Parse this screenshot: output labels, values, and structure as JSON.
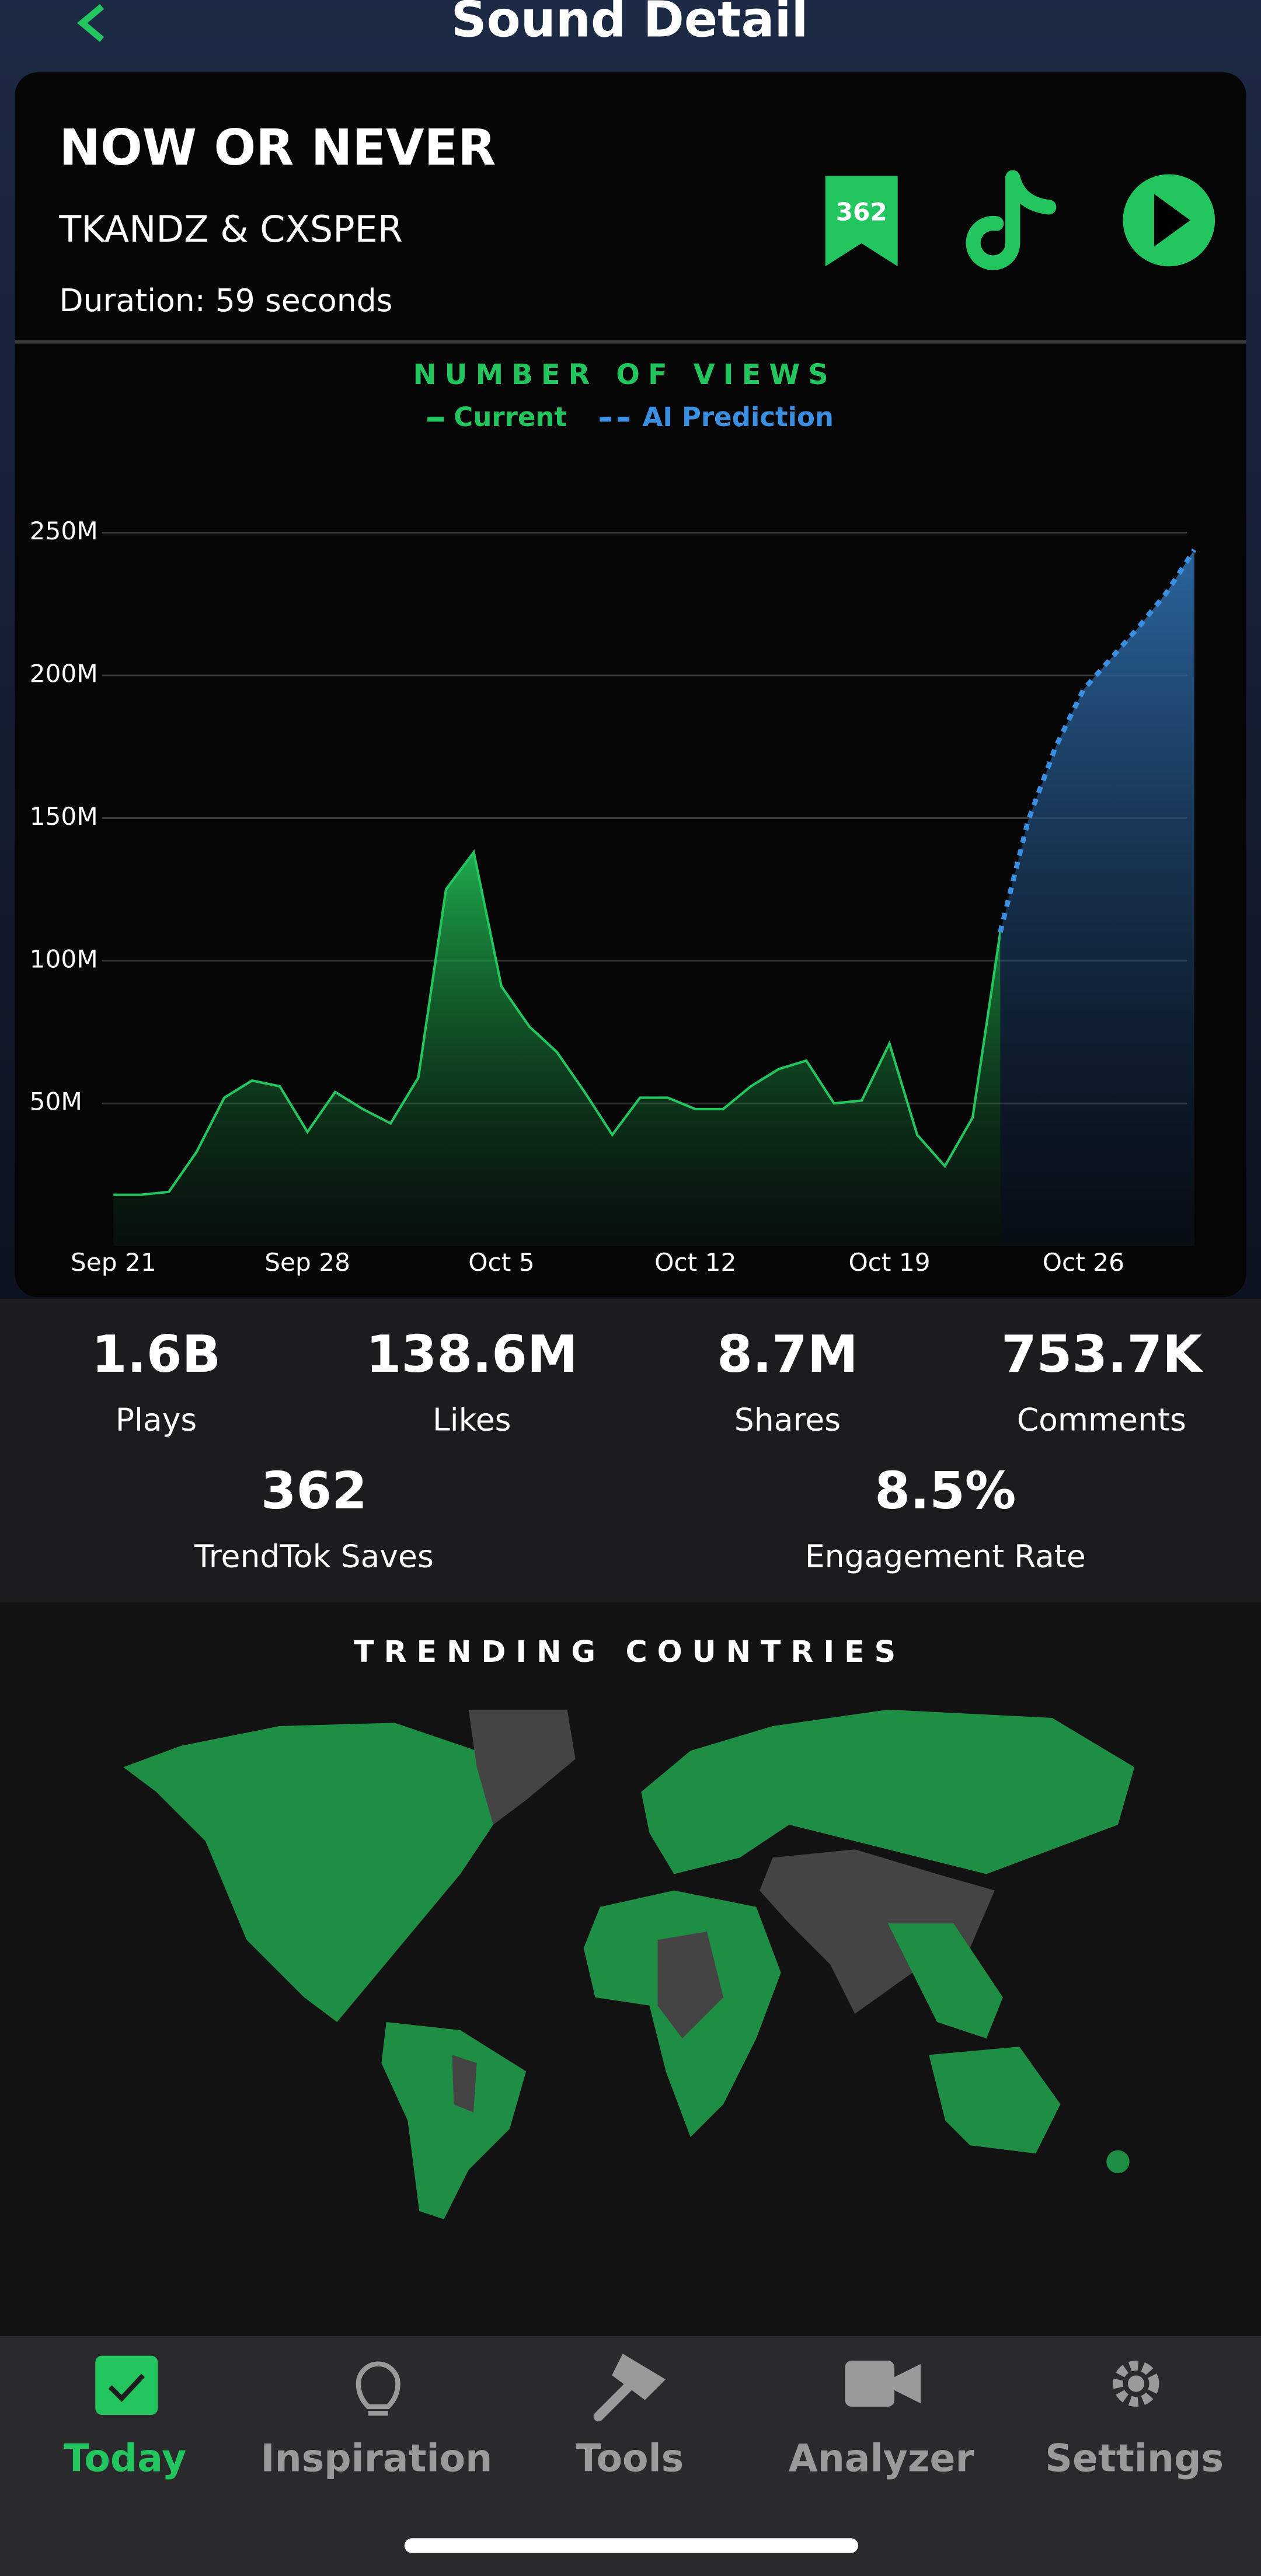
{
  "header": {
    "title": "Sound Detail"
  },
  "sound": {
    "title": "NOW OR NEVER",
    "artist": "TKANDZ & CXSPER",
    "duration": "Duration: 59 seconds",
    "saves_badge": "362"
  },
  "chart_data": {
    "type": "line",
    "title": "NUMBER OF VIEWS",
    "categories": [
      "Sep 21",
      null,
      null,
      null,
      null,
      null,
      null,
      "Sep 28",
      null,
      null,
      null,
      null,
      null,
      null,
      "Oct 5",
      null,
      null,
      null,
      null,
      null,
      null,
      "Oct 12",
      null,
      null,
      null,
      null,
      null,
      null,
      "Oct 19",
      null,
      null,
      null,
      null,
      null,
      null,
      "Oct 26",
      null,
      null,
      null,
      null
    ],
    "series": [
      {
        "name": "Current",
        "color": "#22c55e",
        "values": [
          18,
          18,
          19,
          33,
          52,
          58,
          56,
          40,
          54,
          48,
          43,
          59,
          125,
          138,
          91,
          77,
          68,
          54,
          39,
          52,
          52,
          48,
          48,
          56,
          62,
          65,
          50,
          51,
          71,
          39,
          28,
          45,
          110,
          null,
          null,
          null,
          null,
          null,
          null,
          null
        ]
      },
      {
        "name": "AI Prediction",
        "color": "#3b8fe0",
        "dashed": true,
        "values": [
          null,
          null,
          null,
          null,
          null,
          null,
          null,
          null,
          null,
          null,
          null,
          null,
          null,
          null,
          null,
          null,
          null,
          null,
          null,
          null,
          null,
          null,
          null,
          null,
          null,
          null,
          null,
          null,
          null,
          null,
          null,
          null,
          110,
          149,
          175,
          195,
          206,
          217,
          229,
          244
        ]
      }
    ],
    "ylim": [
      0,
      265
    ],
    "yticks": [
      {
        "value": 50,
        "label": "50M"
      },
      {
        "value": 100,
        "label": "100M"
      },
      {
        "value": 150,
        "label": "150M"
      },
      {
        "value": 200,
        "label": "200M"
      },
      {
        "value": 250,
        "label": "250M"
      }
    ],
    "grid": true
  },
  "stats": [
    {
      "value": "1.6B",
      "label": "Plays"
    },
    {
      "value": "138.6M",
      "label": "Likes"
    },
    {
      "value": "8.7M",
      "label": "Shares"
    },
    {
      "value": "753.7K",
      "label": "Comments"
    },
    {
      "value": "362",
      "label": "TrendTok Saves"
    },
    {
      "value": "8.5%",
      "label": "Engagement Rate"
    }
  ],
  "countries": {
    "title": "TRENDING COUNTRIES"
  },
  "nav": [
    {
      "label": "Today"
    },
    {
      "label": "Inspiration"
    },
    {
      "label": "Tools"
    },
    {
      "label": "Analyzer"
    },
    {
      "label": "Settings"
    }
  ]
}
